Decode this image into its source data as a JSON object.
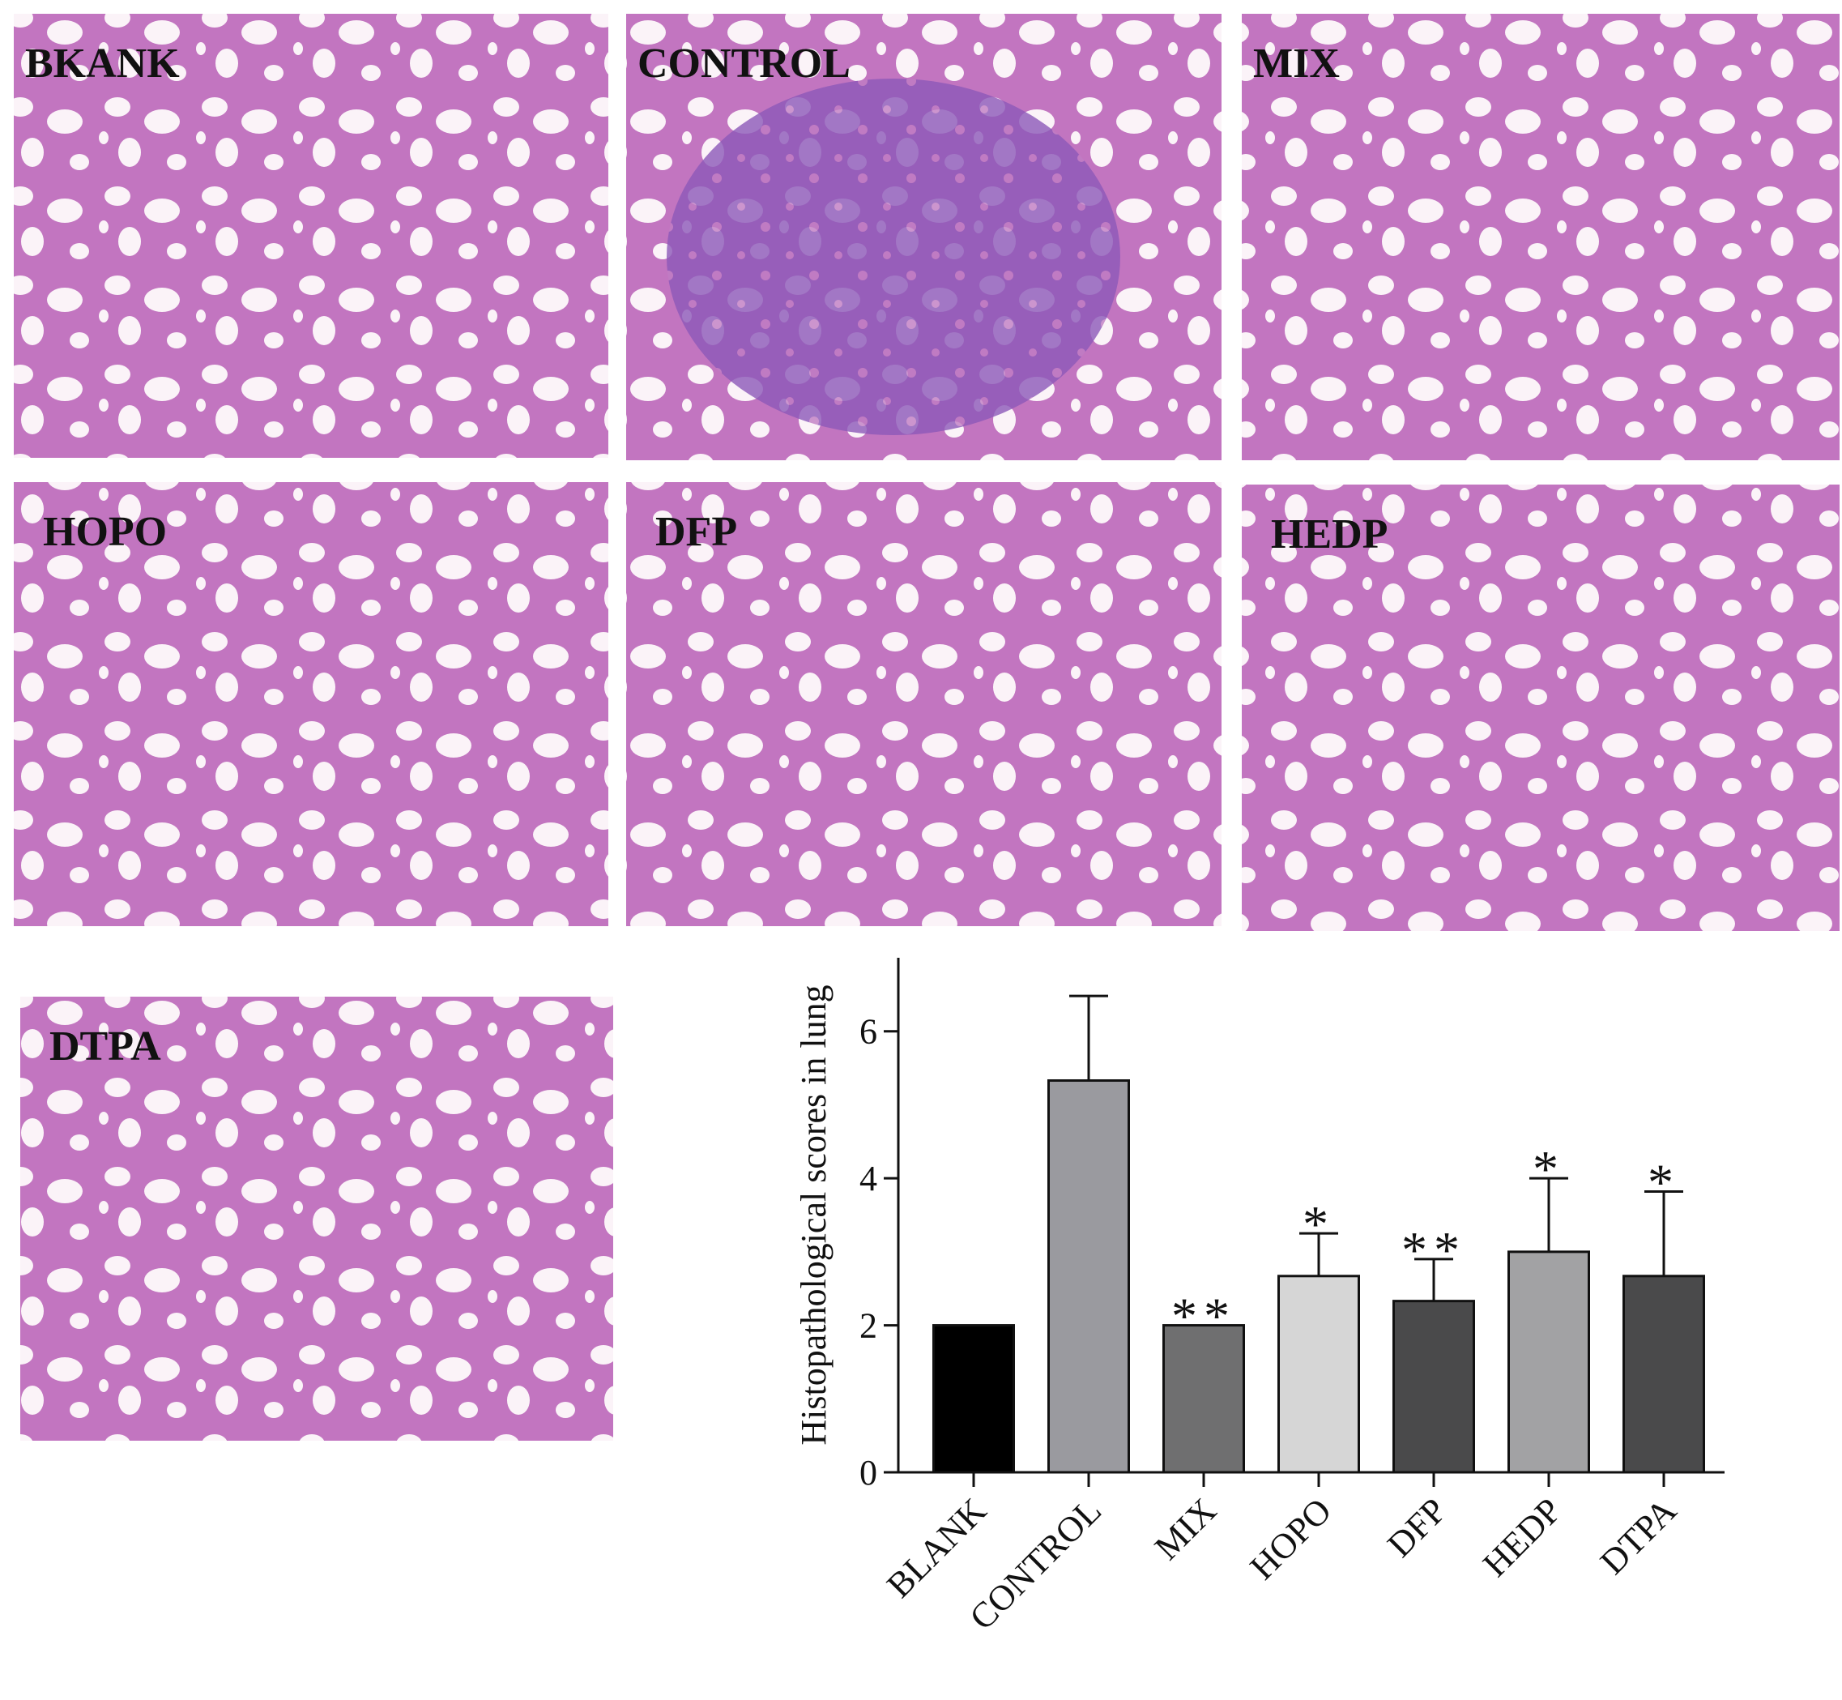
{
  "panels": [
    "BKANK",
    "CONTROL",
    "MIX",
    "HOPO",
    "DFP",
    "HEDP",
    "DTPA"
  ],
  "chart_data": {
    "type": "bar",
    "ylabel": "Histopathological scores in lung",
    "categories": [
      "BLANK",
      "CONTROL",
      "MIX",
      "HOPO",
      "DFP",
      "HEDP",
      "DTPA"
    ],
    "values": [
      2,
      5.33,
      2,
      2.67,
      2.33,
      3,
      2.67
    ],
    "errors": [
      0,
      1.15,
      0,
      0.58,
      0.57,
      1.0,
      1.15
    ],
    "colors": [
      "#000000",
      "#9a9a9f",
      "#6f6f70",
      "#d6d6d6",
      "#4a4a4b",
      "#a2a2a4",
      "#4a4a4b"
    ],
    "annotations": [
      null,
      null,
      "**",
      "*",
      "**",
      "*",
      "*"
    ],
    "ylim": [
      0,
      7
    ],
    "yticks": [
      0,
      2,
      4,
      6
    ]
  }
}
